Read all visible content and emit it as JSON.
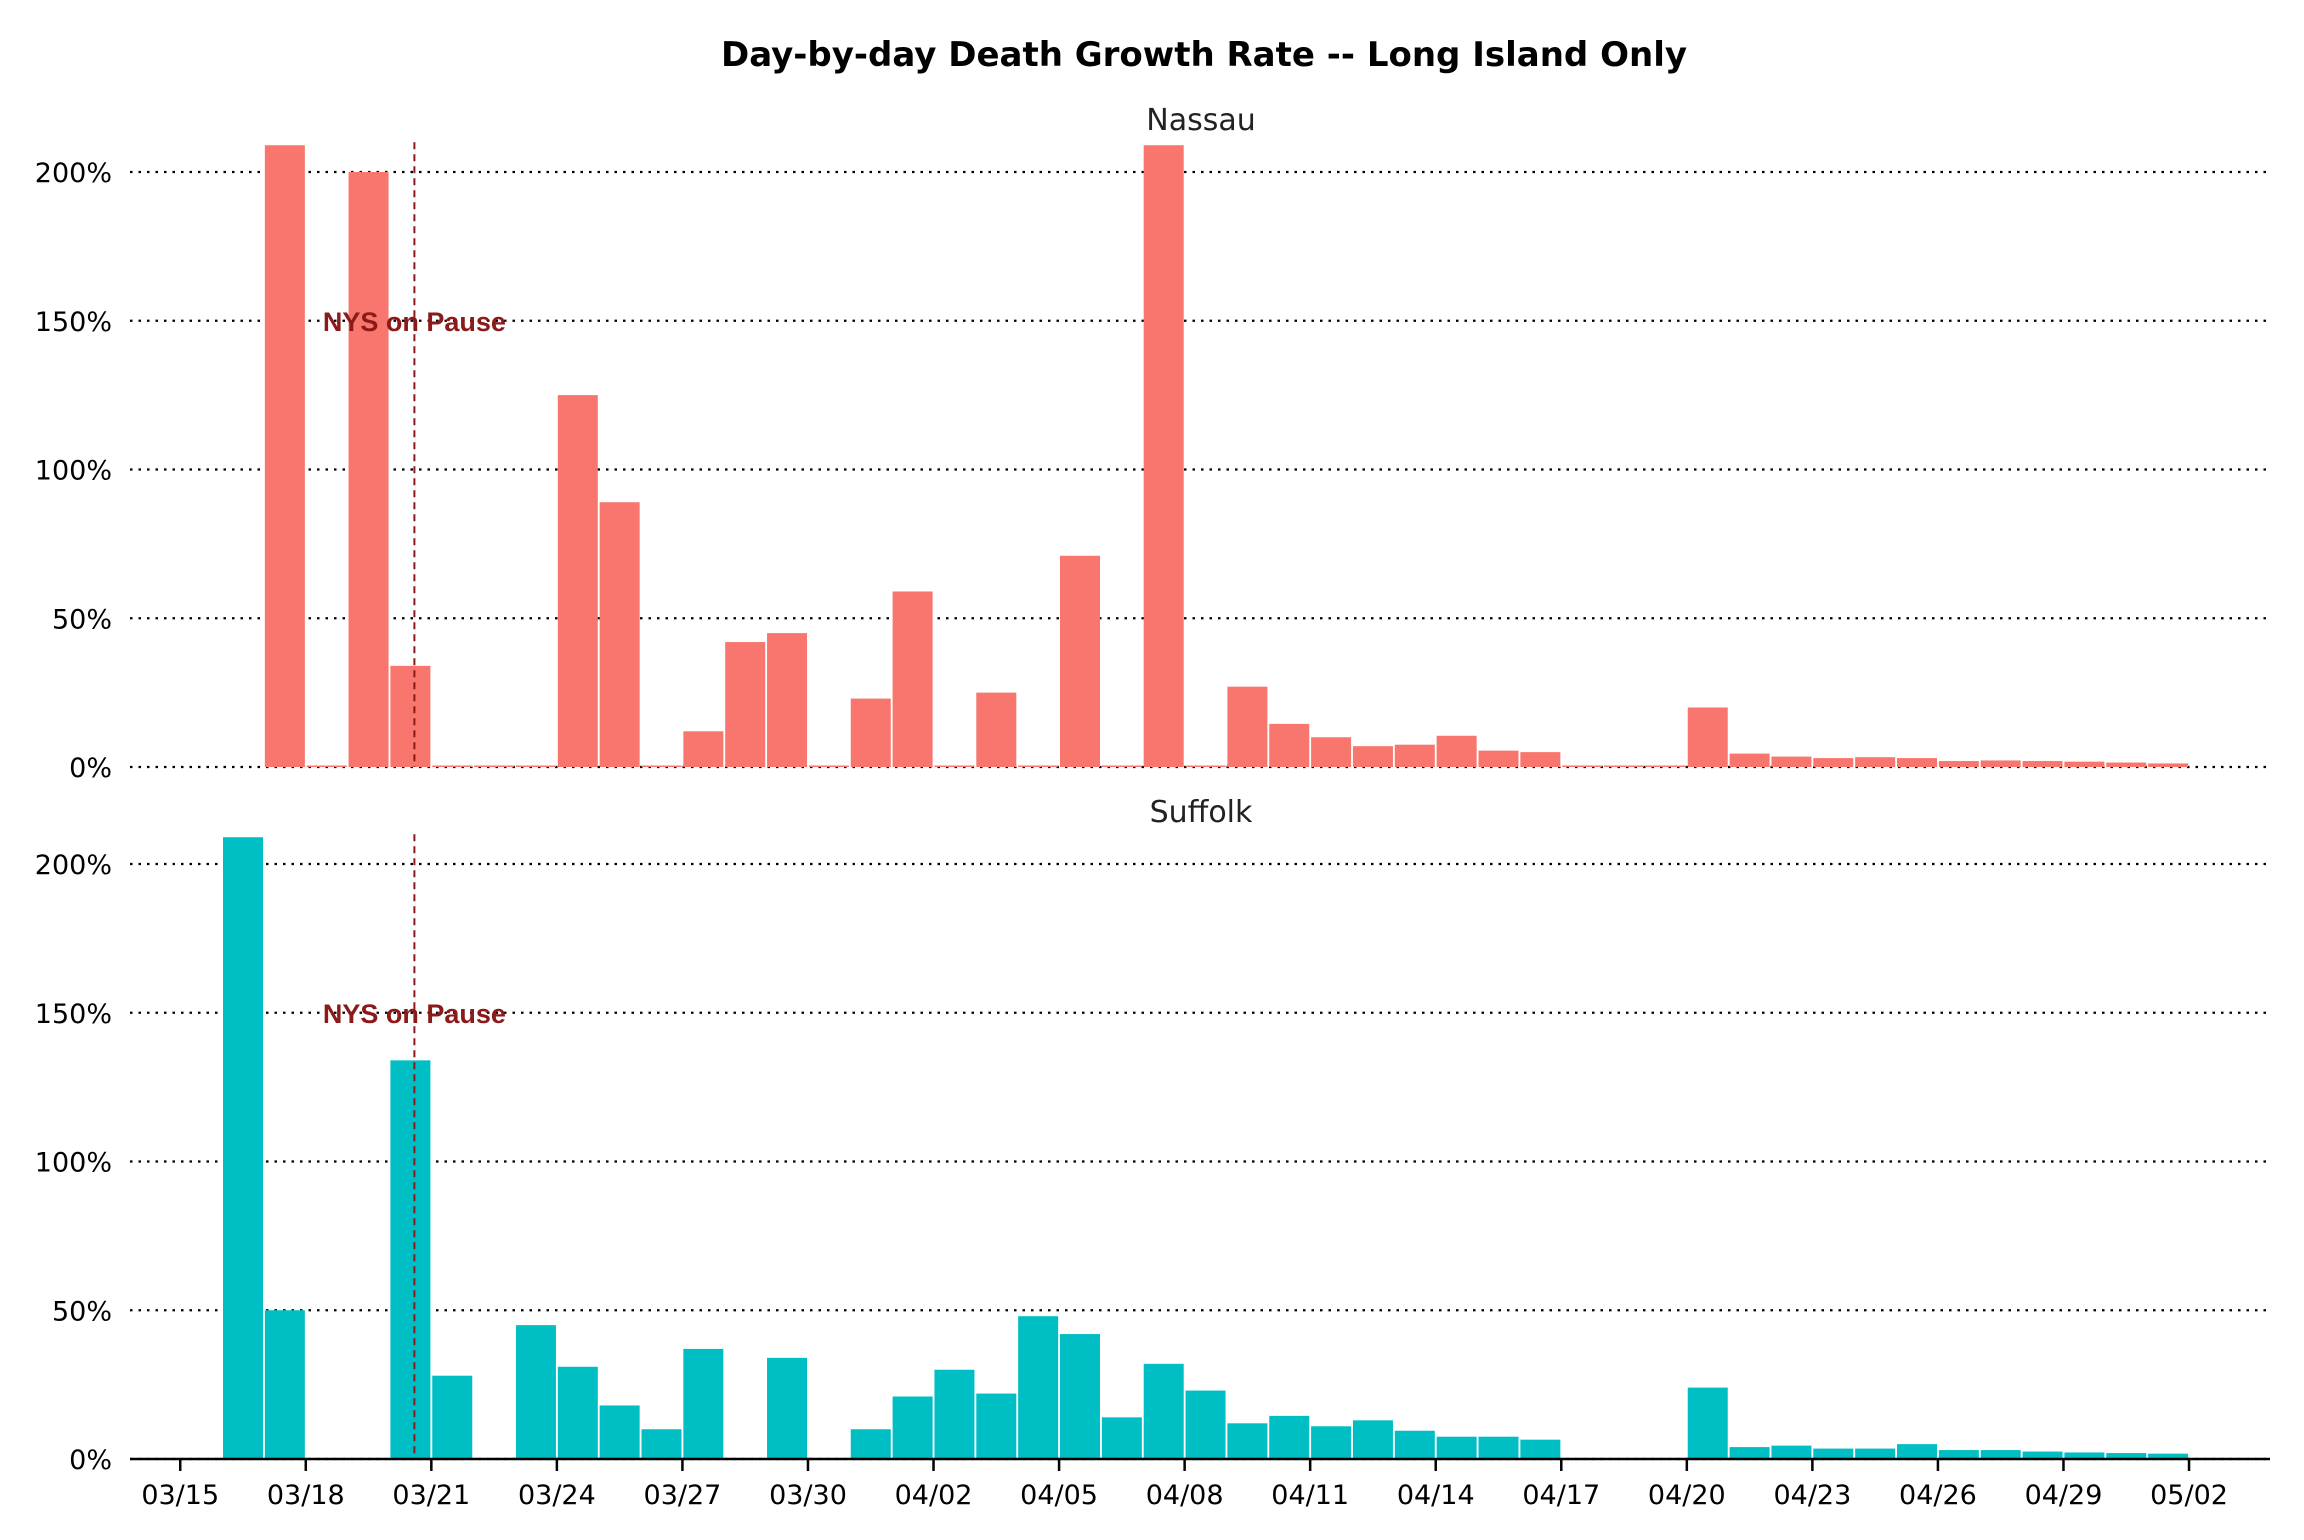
{
  "chart_data": {
    "type": "bar",
    "title": "Day-by-day Death Growth Rate -- Long Island Only",
    "x": [
      "03/16",
      "03/17",
      "03/18",
      "03/19",
      "03/20",
      "03/21",
      "03/22",
      "03/23",
      "03/24",
      "03/25",
      "03/26",
      "03/27",
      "03/28",
      "03/29",
      "03/30",
      "03/31",
      "04/01",
      "04/02",
      "04/03",
      "04/04",
      "04/05",
      "04/06",
      "04/07",
      "04/08",
      "04/09",
      "04/10",
      "04/11",
      "04/12",
      "04/13",
      "04/14",
      "04/15",
      "04/16",
      "04/17",
      "04/18",
      "04/19",
      "04/20",
      "04/21",
      "04/22",
      "04/23",
      "04/24",
      "04/25",
      "04/26",
      "04/27",
      "04/28",
      "04/29",
      "04/30",
      "05/01"
    ],
    "xticks": [
      "03/15",
      "03/18",
      "03/21",
      "03/24",
      "03/27",
      "03/30",
      "04/02",
      "04/05",
      "04/08",
      "04/11",
      "04/14",
      "04/17",
      "04/20",
      "04/23",
      "04/26",
      "04/29",
      "05/02"
    ],
    "ylim": [
      0,
      2.2
    ],
    "yticks": [
      0,
      0.5,
      1.0,
      1.5,
      2.0
    ],
    "ytick_labels": [
      "0%",
      "50%",
      "100%",
      "150%",
      "200%"
    ],
    "grid": "dotted horizontal",
    "annotation": {
      "text": "NYS on Pause",
      "date": "03/20",
      "color": "#8b1a1a"
    },
    "series": [
      {
        "name": "Nassau",
        "color": "#f8766d",
        "values": [
          null,
          2.09,
          0.0,
          2.0,
          0.34,
          0.0,
          0.0,
          0.0,
          1.25,
          0.89,
          0.0,
          0.12,
          0.42,
          0.45,
          0.0,
          0.23,
          0.59,
          0.0,
          0.25,
          0.0,
          0.71,
          0.0,
          2.09,
          0.0,
          0.27,
          0.145,
          0.1,
          0.07,
          0.075,
          0.105,
          0.055,
          0.05,
          0.0,
          0.0,
          0.0,
          0.2,
          0.045,
          0.035,
          0.03,
          0.033,
          0.03,
          0.02,
          0.022,
          0.02,
          0.018,
          0.015,
          0.012
        ]
      },
      {
        "name": "Suffolk",
        "color": "#00bfc4",
        "values": [
          2.09,
          0.5,
          null,
          null,
          1.34,
          0.28,
          null,
          0.45,
          0.31,
          0.18,
          0.1,
          0.37,
          null,
          0.34,
          null,
          0.1,
          0.21,
          0.3,
          0.22,
          0.48,
          0.42,
          0.14,
          0.32,
          0.23,
          0.12,
          0.145,
          0.11,
          0.13,
          0.095,
          0.075,
          0.075,
          0.065,
          null,
          null,
          null,
          0.24,
          0.04,
          0.045,
          0.035,
          0.035,
          0.05,
          0.03,
          0.03,
          0.025,
          0.022,
          0.02,
          0.018
        ]
      }
    ]
  }
}
